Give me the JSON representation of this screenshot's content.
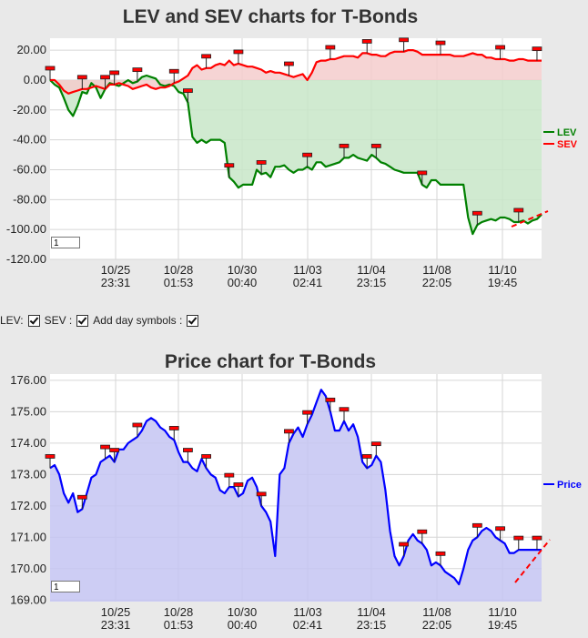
{
  "chart_data": [
    {
      "type": "line",
      "title": "LEV and SEV charts for T-Bonds",
      "x_tick_labels": [
        [
          "10/25",
          "23:31"
        ],
        [
          "10/28",
          "01:53"
        ],
        [
          "10/30",
          "00:40"
        ],
        [
          "11/03",
          "02:41"
        ],
        [
          "11/04",
          "23:15"
        ],
        [
          "11/08",
          "22:05"
        ],
        [
          "11/10",
          "19:45"
        ]
      ],
      "y_ticks": [
        20,
        0,
        -20,
        -40,
        -60,
        -80,
        -100,
        -120
      ],
      "y_tick_labels": [
        "20.00",
        "0.00",
        "-20.00",
        "-40.00",
        "-60.00",
        "-80.00",
        "-100.00",
        "-120.00"
      ],
      "ylim": [
        -120,
        28
      ],
      "x": [
        0,
        5,
        10,
        15,
        20,
        25,
        30,
        35,
        40,
        45,
        50,
        55,
        60,
        65,
        70,
        75,
        80,
        85,
        90,
        95,
        100,
        105,
        110,
        115,
        120,
        125,
        130,
        135,
        140,
        145,
        150,
        155,
        160,
        165,
        170,
        175,
        180,
        185,
        190,
        195,
        200,
        205,
        210,
        215,
        220,
        225,
        230,
        235,
        240,
        245,
        250,
        255,
        260,
        265,
        270,
        275,
        280,
        285,
        290,
        295,
        300,
        305,
        310,
        315,
        320,
        325,
        330,
        335,
        340,
        345,
        350,
        355,
        360,
        365,
        370,
        375,
        380,
        385,
        390,
        395,
        400,
        405,
        410,
        415,
        420,
        425,
        430,
        435,
        440,
        445,
        450,
        455,
        460,
        465,
        470,
        475,
        480,
        485,
        490,
        495,
        500,
        505,
        510,
        515,
        520,
        525,
        530,
        535
      ],
      "series": [
        {
          "name": "LEV",
          "color": "#008000",
          "values": [
            0,
            -3,
            -5,
            -12,
            -20,
            -24,
            -17,
            -8,
            -9,
            -2,
            -5,
            -12,
            -6,
            -2,
            -3,
            -4,
            -2,
            0,
            -2,
            -1,
            2,
            3,
            2,
            1,
            -3,
            -4,
            -3,
            -4,
            -8,
            -9,
            -15,
            -38,
            -42,
            -40,
            -42,
            -40,
            -40,
            -40,
            -42,
            -65,
            -68,
            -72,
            -70,
            -70,
            -70,
            -60,
            -63,
            -62,
            -65,
            -58,
            -58,
            -57,
            -60,
            -62,
            -60,
            -60,
            -58,
            -60,
            -55,
            -55,
            -58,
            -57,
            -56,
            -55,
            -52,
            -52,
            -50,
            -52,
            -53,
            -54,
            -50,
            -52,
            -55,
            -56,
            -58,
            -60,
            -61,
            -62,
            -62,
            -62,
            -62,
            -70,
            -72,
            -67,
            -67,
            -70,
            -70,
            -70,
            -70,
            -70,
            -70,
            -92,
            -103,
            -97,
            -95,
            -94,
            -93,
            -94,
            -92,
            -92,
            -93,
            -95,
            -95,
            -94,
            -96,
            -94,
            -93,
            -90
          ]
        },
        {
          "name": "SEV",
          "color": "#ff0000",
          "values": [
            0,
            0,
            -3,
            -7,
            -9,
            -8,
            -7,
            -6,
            -6,
            -5,
            -4,
            -5,
            -6,
            -3,
            -3,
            -2,
            -3,
            -4,
            -6,
            -5,
            -4,
            -3,
            -5,
            -6,
            -5,
            -5,
            -4,
            -2,
            -1,
            1,
            3,
            8,
            10,
            7,
            8,
            8,
            10,
            11,
            10,
            13,
            10,
            11,
            10,
            9,
            9,
            8,
            7,
            5,
            6,
            5,
            5,
            4,
            3,
            2,
            3,
            4,
            0,
            5,
            12,
            13,
            13,
            14,
            14,
            15,
            16,
            16,
            16,
            15,
            18,
            18,
            17,
            17,
            16,
            16,
            18,
            19,
            19,
            19,
            20,
            20,
            19,
            17,
            17,
            17,
            17,
            17,
            17,
            17,
            16,
            16,
            16,
            17,
            18,
            17,
            17,
            15,
            15,
            14,
            14,
            14,
            13,
            13,
            14,
            14,
            13,
            13,
            13,
            13
          ]
        }
      ],
      "legend": "right",
      "grid": true
    },
    {
      "type": "area",
      "title": "Price chart for T-Bonds",
      "x_tick_labels": [
        [
          "10/25",
          "23:31"
        ],
        [
          "10/28",
          "01:53"
        ],
        [
          "10/30",
          "00:40"
        ],
        [
          "11/03",
          "02:41"
        ],
        [
          "11/04",
          "23:15"
        ],
        [
          "11/08",
          "22:05"
        ],
        [
          "11/10",
          "19:45"
        ]
      ],
      "y_ticks": [
        176,
        175,
        174,
        173,
        172,
        171,
        170,
        169
      ],
      "y_tick_labels": [
        "176.00",
        "175.00",
        "174.00",
        "173.00",
        "172.00",
        "171.00",
        "170.00",
        "169.00"
      ],
      "ylim": [
        168.95,
        176.2
      ],
      "x": [
        0,
        5,
        10,
        15,
        20,
        25,
        30,
        35,
        40,
        45,
        50,
        55,
        60,
        65,
        70,
        75,
        80,
        85,
        90,
        95,
        100,
        105,
        110,
        115,
        120,
        125,
        130,
        135,
        140,
        145,
        150,
        155,
        160,
        165,
        170,
        175,
        180,
        185,
        190,
        195,
        200,
        205,
        210,
        215,
        220,
        225,
        230,
        235,
        240,
        245,
        250,
        255,
        260,
        265,
        270,
        275,
        280,
        285,
        290,
        295,
        300,
        305,
        310,
        315,
        320,
        325,
        330,
        335,
        340,
        345,
        350,
        355,
        360,
        365,
        370,
        375,
        380,
        385,
        390,
        395,
        400,
        405,
        410,
        415,
        420,
        425,
        430,
        435,
        440,
        445,
        450,
        455,
        460,
        465,
        470,
        475,
        480,
        485,
        490,
        495,
        500,
        505,
        510,
        515,
        520,
        525,
        530,
        535
      ],
      "series": [
        {
          "name": "Price",
          "color": "#0000ff",
          "values": [
            173.2,
            173.3,
            173.0,
            172.4,
            172.1,
            172.4,
            171.8,
            171.9,
            172.4,
            172.9,
            173.0,
            173.4,
            173.5,
            173.6,
            173.4,
            173.8,
            173.8,
            174.0,
            174.1,
            174.2,
            174.4,
            174.7,
            174.8,
            174.7,
            174.5,
            174.4,
            174.2,
            174.1,
            173.7,
            173.4,
            173.4,
            173.2,
            173.1,
            173.5,
            173.2,
            173.0,
            172.9,
            172.5,
            172.4,
            172.6,
            172.6,
            172.3,
            172.4,
            172.8,
            172.9,
            172.6,
            172.0,
            171.8,
            171.5,
            170.4,
            173.0,
            173.2,
            174.0,
            174.3,
            174.5,
            174.2,
            174.6,
            174.9,
            175.3,
            175.7,
            175.5,
            175.0,
            174.4,
            174.4,
            174.7,
            174.4,
            174.6,
            174.2,
            173.4,
            173.2,
            173.3,
            173.6,
            173.4,
            172.5,
            171.2,
            170.4,
            170.1,
            170.4,
            170.9,
            171.1,
            170.9,
            170.8,
            170.6,
            170.1,
            170.2,
            170.1,
            169.9,
            169.8,
            169.7,
            169.5,
            170.0,
            170.6,
            170.9,
            171.0,
            171.2,
            171.3,
            171.2,
            171.0,
            170.9,
            170.8,
            170.5,
            170.5,
            170.6,
            170.6,
            170.6,
            170.6,
            170.6,
            170.6
          ]
        }
      ],
      "legend": "right",
      "grid": true
    }
  ],
  "controls": {
    "lev_label": "LEV:",
    "sev_label": "SEV :",
    "day_label": "Add day symbols :"
  },
  "page_box_1": "1",
  "page_box_2": "1",
  "colors": {
    "lev_line": "#008000",
    "lev_fill": "#c8e6c8",
    "sev_line": "#ff0000",
    "sev_fill": "#f5cccc",
    "price_line": "#0000ff",
    "price_fill": "#c4c4f2",
    "marker": "#ff0000",
    "trend": "#ff0000"
  }
}
